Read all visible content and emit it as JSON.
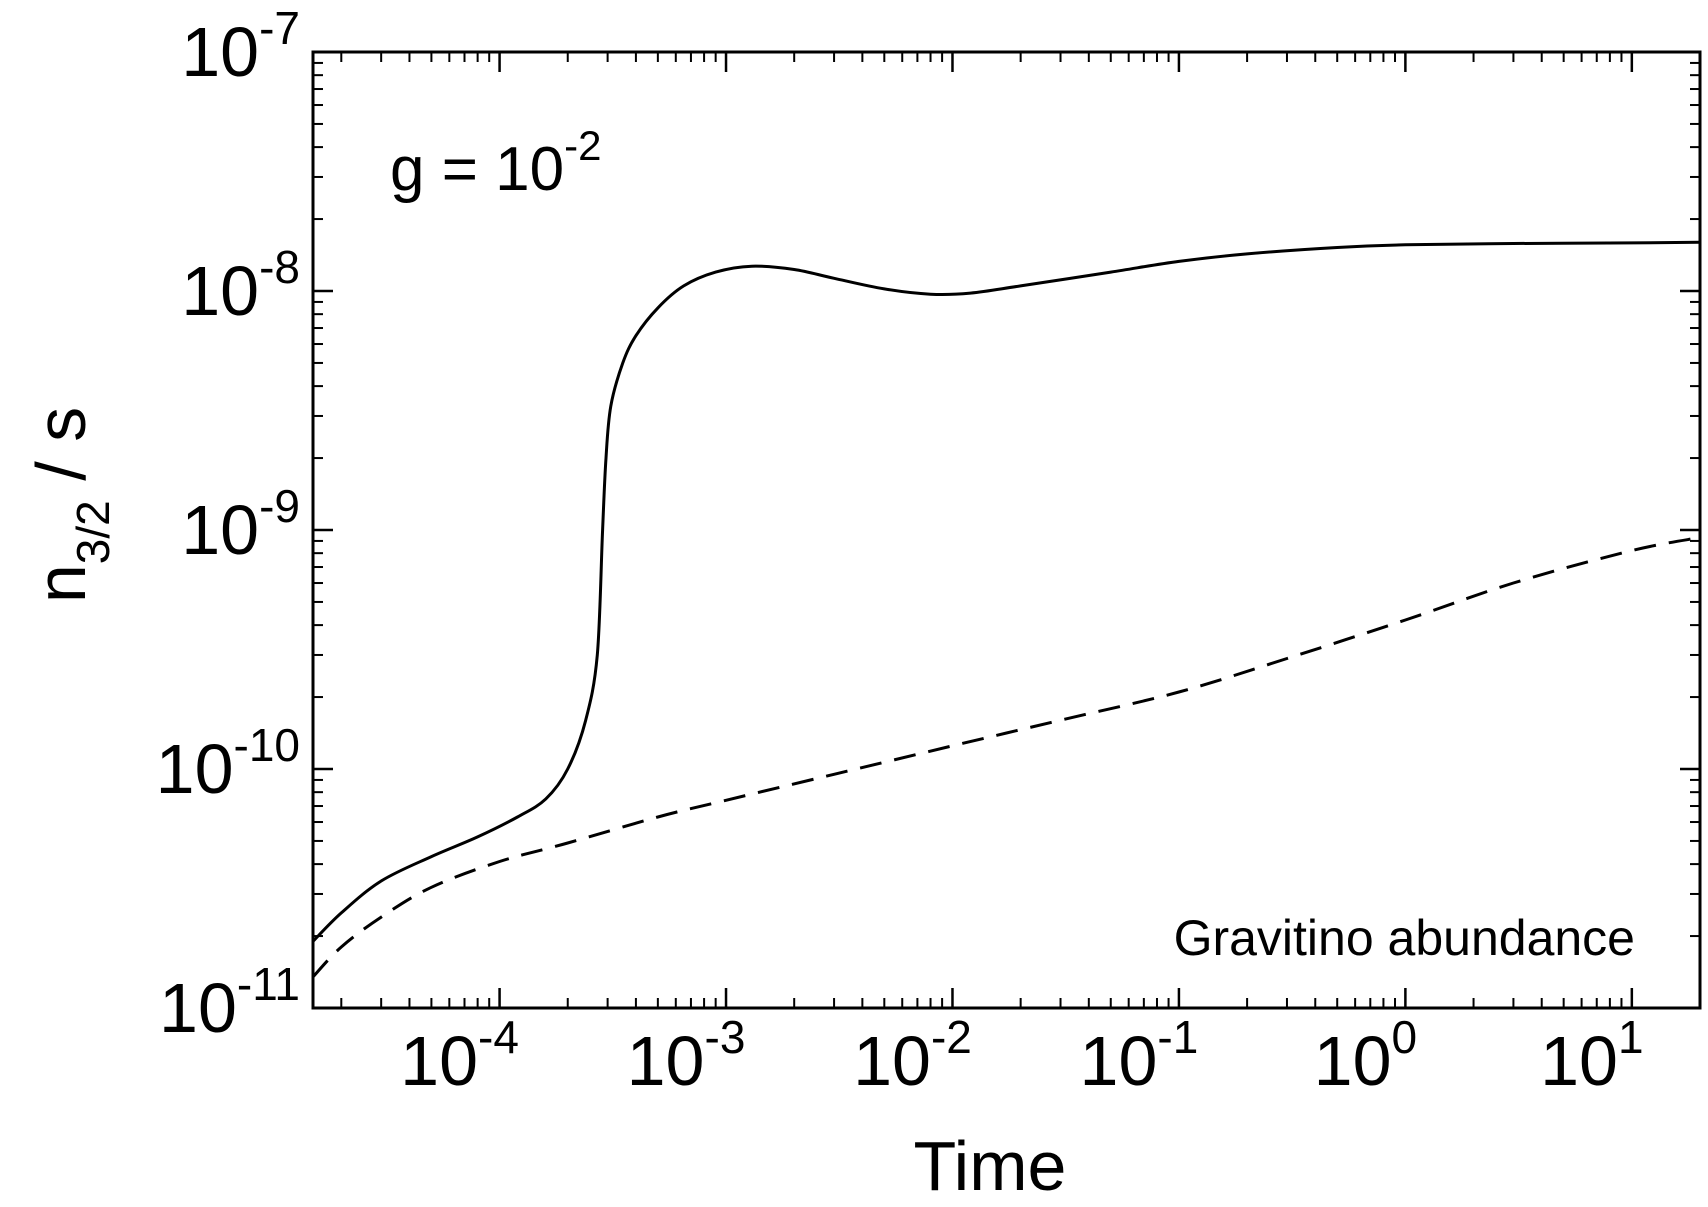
{
  "chart_data": {
    "type": "line",
    "title": "",
    "xlabel": "Time",
    "ylabel": {
      "base": "n",
      "subscript": "3/2",
      "suffix": " / s"
    },
    "x_scale": "log",
    "y_scale": "log",
    "xlim": [
      1.5e-05,
      20
    ],
    "ylim": [
      1e-11,
      1e-07
    ],
    "grid": false,
    "x_ticks": [
      {
        "value": 0.0001,
        "base": "10",
        "exp": "-4"
      },
      {
        "value": 0.001,
        "base": "10",
        "exp": "-3"
      },
      {
        "value": 0.01,
        "base": "10",
        "exp": "-2"
      },
      {
        "value": 0.1,
        "base": "10",
        "exp": "-1"
      },
      {
        "value": 1,
        "base": "10",
        "exp": "0"
      },
      {
        "value": 10,
        "base": "10",
        "exp": "1"
      }
    ],
    "y_ticks": [
      {
        "value": 1e-11,
        "base": "10",
        "exp": "-11"
      },
      {
        "value": 1e-10,
        "base": "10",
        "exp": "-10"
      },
      {
        "value": 1e-09,
        "base": "10",
        "exp": "-9"
      },
      {
        "value": 1e-08,
        "base": "10",
        "exp": "-8"
      },
      {
        "value": 1e-07,
        "base": "10",
        "exp": "-7"
      }
    ],
    "annotations": [
      {
        "id": "coupling",
        "base": "g = 10",
        "exp": "-2"
      },
      {
        "id": "corner",
        "text": "Gravitino abundance"
      }
    ],
    "series": [
      {
        "style": "solid",
        "color": "#000000",
        "points": [
          [
            1.5e-05,
            1.9e-11
          ],
          [
            2e-05,
            2.5e-11
          ],
          [
            3e-05,
            3.4e-11
          ],
          [
            5e-05,
            4.3e-11
          ],
          [
            8e-05,
            5.2e-11
          ],
          [
            0.00012,
            6.3e-11
          ],
          [
            0.00016,
            7.5e-11
          ],
          [
            0.0002,
            1e-10
          ],
          [
            0.00024,
            1.6e-10
          ],
          [
            0.00027,
            3e-10
          ],
          [
            0.000285,
            1e-09
          ],
          [
            0.000295,
            2e-09
          ],
          [
            0.00031,
            3.3e-09
          ],
          [
            0.00035,
            5e-09
          ],
          [
            0.0004,
            6.5e-09
          ],
          [
            0.0005,
            8.5e-09
          ],
          [
            0.00065,
            1.05e-08
          ],
          [
            0.0009,
            1.2e-08
          ],
          [
            0.0013,
            1.27e-08
          ],
          [
            0.002,
            1.23e-08
          ],
          [
            0.003,
            1.13e-08
          ],
          [
            0.005,
            1.02e-08
          ],
          [
            0.008,
            9.7e-09
          ],
          [
            0.012,
            9.8e-09
          ],
          [
            0.02,
            1.05e-08
          ],
          [
            0.05,
            1.2e-08
          ],
          [
            0.1,
            1.33e-08
          ],
          [
            0.2,
            1.43e-08
          ],
          [
            0.5,
            1.52e-08
          ],
          [
            1.0,
            1.56e-08
          ],
          [
            3.0,
            1.58e-08
          ],
          [
            10,
            1.59e-08
          ],
          [
            20,
            1.6e-08
          ]
        ]
      },
      {
        "style": "dashed",
        "color": "#000000",
        "points": [
          [
            1.5e-05,
            1.35e-11
          ],
          [
            2e-05,
            1.8e-11
          ],
          [
            3e-05,
            2.4e-11
          ],
          [
            5e-05,
            3.2e-11
          ],
          [
            0.0001,
            4.1e-11
          ],
          [
            0.0002,
            4.9e-11
          ],
          [
            0.0005,
            6.3e-11
          ],
          [
            0.001,
            7.4e-11
          ],
          [
            0.003,
            9.5e-11
          ],
          [
            0.01,
            1.25e-10
          ],
          [
            0.03,
            1.6e-10
          ],
          [
            0.1,
            2.1e-10
          ],
          [
            0.3,
            2.9e-10
          ],
          [
            1.0,
            4.2e-10
          ],
          [
            3.0,
            6e-10
          ],
          [
            10,
            8.2e-10
          ],
          [
            20,
            9.3e-10
          ]
        ]
      }
    ]
  }
}
